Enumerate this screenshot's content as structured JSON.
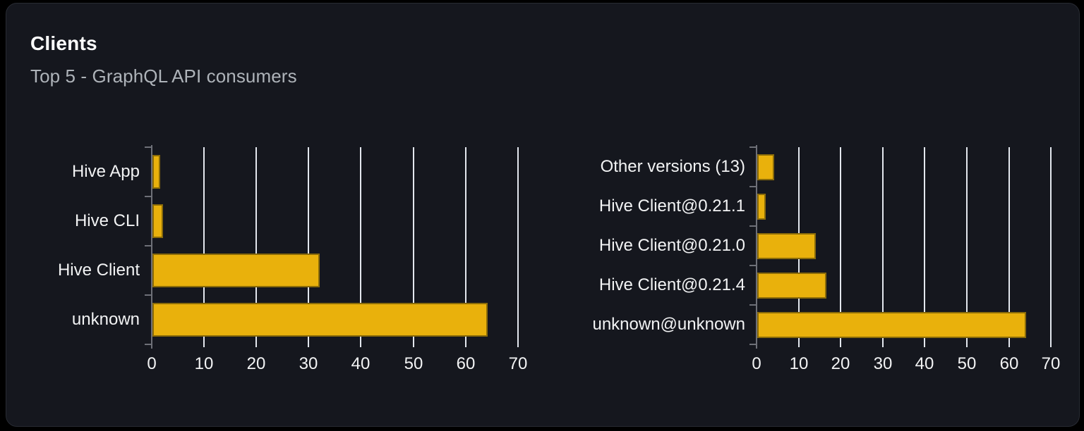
{
  "card": {
    "title": "Clients",
    "subtitle": "Top 5 - GraphQL API consumers"
  },
  "colors": {
    "page_background": "#000000",
    "card_background": "#15171e",
    "card_border": "#282b33",
    "bar_fill": "#e9b10c",
    "bar_border": "#8a6b09",
    "grid_line": "#e3e7ee",
    "axis_line": "#6e7078",
    "title_text": "#ffffff",
    "subtitle_text": "#aeb3b9",
    "label_text": "#f2f3f4"
  },
  "chart_data": [
    {
      "type": "bar",
      "orientation": "horizontal",
      "position": "left",
      "categories": [
        "Hive App",
        "Hive CLI",
        "Hive Client",
        "unknown"
      ],
      "values": [
        1.5,
        2,
        32,
        64
      ],
      "xlim": [
        0,
        70
      ],
      "xticks": [
        0,
        10,
        20,
        30,
        40,
        50,
        60,
        70
      ],
      "grid": true,
      "legend": "none",
      "bar_color": "#e9b10c"
    },
    {
      "type": "bar",
      "orientation": "horizontal",
      "position": "right",
      "categories": [
        "Other versions (13)",
        "Hive Client@0.21.1",
        "Hive Client@0.21.0",
        "Hive Client@0.21.4",
        "unknown@unknown"
      ],
      "values": [
        4,
        2,
        14,
        16.5,
        64
      ],
      "xlim": [
        0,
        70
      ],
      "xticks": [
        0,
        10,
        20,
        30,
        40,
        50,
        60,
        70
      ],
      "grid": true,
      "legend": "none",
      "bar_color": "#e9b10c"
    }
  ]
}
